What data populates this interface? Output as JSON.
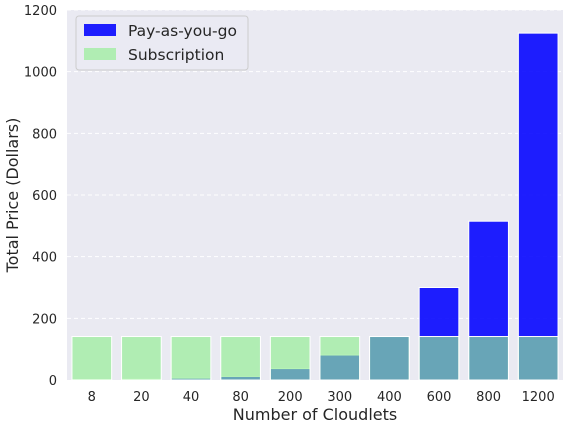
{
  "chart_data": {
    "type": "bar",
    "categories": [
      "8",
      "20",
      "40",
      "80",
      "200",
      "300",
      "400",
      "600",
      "800",
      "1200"
    ],
    "series": [
      {
        "name": "Pay-as-you-go",
        "color": "#0000ff",
        "values": [
          1.5,
          3,
          6,
          11.5,
          37,
          81,
          141,
          300,
          515,
          1125
        ]
      },
      {
        "name": "Subscription",
        "color": "#90ee90",
        "values": [
          141,
          141,
          141,
          141,
          141,
          141,
          141,
          141,
          141,
          141
        ]
      }
    ],
    "overlay": true,
    "xlabel": "Number of Cloudlets",
    "ylabel": "Total Price (Dollars)",
    "ylim": [
      0,
      1200
    ],
    "yticks": [
      0,
      200,
      400,
      600,
      800,
      1000,
      1200
    ],
    "grid": true,
    "legend_position": "top-left",
    "background": "#eaeaf2"
  }
}
